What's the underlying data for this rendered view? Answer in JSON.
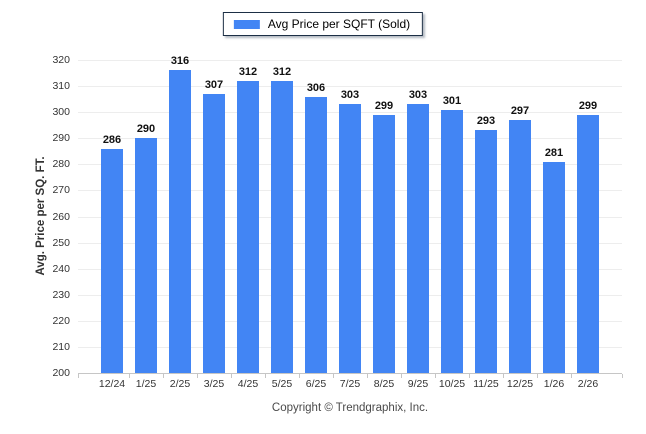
{
  "chart_data": {
    "type": "bar",
    "title": "",
    "legend": [
      "Avg Price per SQFT (Sold)"
    ],
    "legend_position": "top-center",
    "categories": [
      "12/24",
      "1/25",
      "2/25",
      "3/25",
      "4/25",
      "5/25",
      "6/25",
      "7/25",
      "8/25",
      "9/25",
      "10/25",
      "11/25",
      "12/25",
      "1/26",
      "2/26"
    ],
    "values": [
      286,
      290,
      316,
      307,
      312,
      312,
      306,
      303,
      299,
      303,
      301,
      293,
      297,
      281,
      299
    ],
    "xlabel": "",
    "ylabel": "Avg. Price per SQ. FT.",
    "ylim": [
      200,
      320
    ],
    "ytick_step": 10,
    "grid": "horizontal",
    "value_labels_shown": true,
    "colors": {
      "bar": "#4285F4",
      "gridline": "#ededed",
      "axis_line": "#c6c6c6",
      "value_label": "#111111",
      "axis_text": "#333333",
      "legend_border": "#1c2f45"
    }
  },
  "footer": {
    "text": "Copyright © Trendgraphix, Inc."
  }
}
